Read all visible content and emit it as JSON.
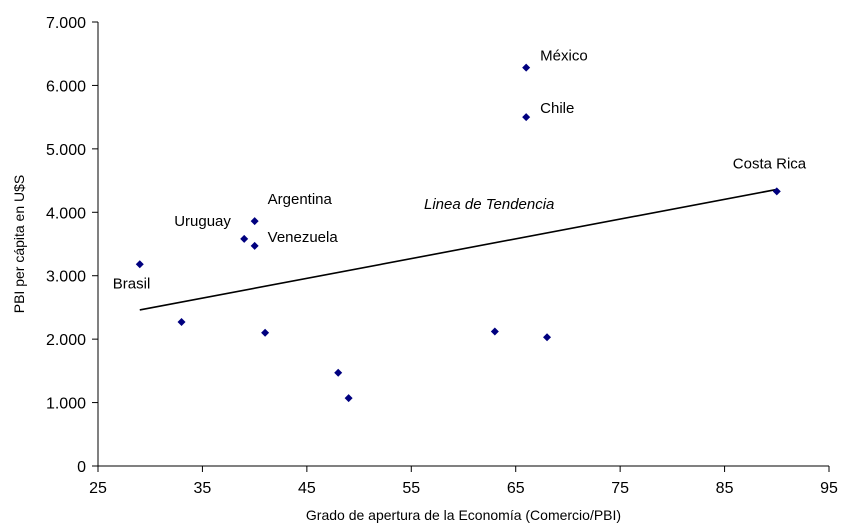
{
  "chart_data": {
    "type": "scatter",
    "title": "",
    "xlabel": "Grado de apertura de la Economía (Comercio/PBI)",
    "ylabel": "PBI per cápita en U$S",
    "xlim": [
      25,
      95
    ],
    "ylim": [
      0,
      7000
    ],
    "x_ticks": [
      "25",
      "35",
      "45",
      "55",
      "65",
      "75",
      "85",
      "95"
    ],
    "y_ticks": [
      "0",
      "1.000",
      "2.000",
      "3.000",
      "4.000",
      "5.000",
      "6.000",
      "7.000"
    ],
    "grid": false,
    "legend": "none",
    "marker_color": "#00007F",
    "points": [
      {
        "x": 29,
        "y": 3180,
        "label": "Brasil"
      },
      {
        "x": 33,
        "y": 2270,
        "label": ""
      },
      {
        "x": 39,
        "y": 3580,
        "label": "Uruguay"
      },
      {
        "x": 40,
        "y": 3860,
        "label": "Argentina"
      },
      {
        "x": 40,
        "y": 3470,
        "label": "Venezuela"
      },
      {
        "x": 41,
        "y": 2100,
        "label": ""
      },
      {
        "x": 48,
        "y": 1470,
        "label": ""
      },
      {
        "x": 49,
        "y": 1070,
        "label": ""
      },
      {
        "x": 63,
        "y": 2120,
        "label": ""
      },
      {
        "x": 66,
        "y": 6280,
        "label": "México"
      },
      {
        "x": 66,
        "y": 5500,
        "label": "Chile"
      },
      {
        "x": 68,
        "y": 2030,
        "label": ""
      },
      {
        "x": 90,
        "y": 4330,
        "label": "Costa Rica"
      }
    ],
    "trendline": {
      "label": "Linea de Tendencia",
      "x": [
        29,
        90
      ],
      "y": [
        2460,
        4360
      ]
    }
  }
}
